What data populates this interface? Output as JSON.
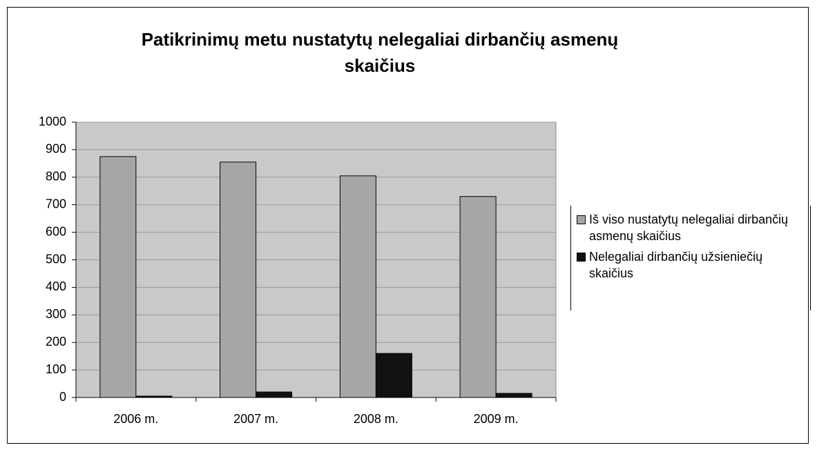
{
  "chart_data": {
    "type": "bar",
    "title": "Patikrinimų metu nustatytų nelegaliai dirbančių asmenų skaičius",
    "categories": [
      "2006 m.",
      "2007 m.",
      "2008 m.",
      "2009 m."
    ],
    "series": [
      {
        "name": "Iš viso nustatytų nelegaliai dirbančių asmenų skaičius",
        "color": "#a6a6a6",
        "values": [
          875,
          855,
          805,
          730
        ]
      },
      {
        "name": "Nelegaliai dirbančių užsieniečių skaičius",
        "color": "#111111",
        "values": [
          5,
          20,
          160,
          15
        ]
      }
    ],
    "ylim": [
      0,
      1000
    ],
    "yticks": [
      0,
      100,
      200,
      300,
      400,
      500,
      600,
      700,
      800,
      900,
      1000
    ],
    "grid": true,
    "legend": "right"
  }
}
